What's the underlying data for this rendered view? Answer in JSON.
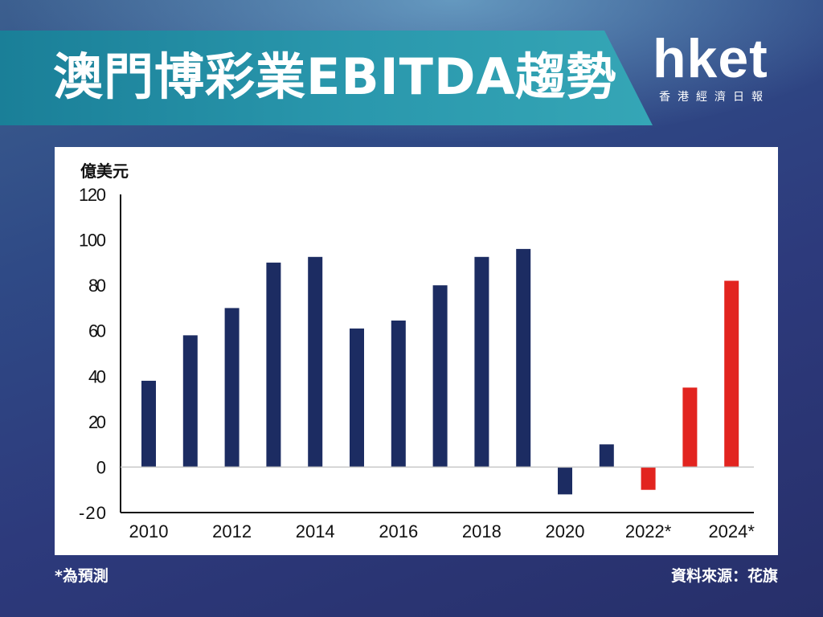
{
  "header": {
    "title": "澳門博彩業EBITDA趨勢",
    "logo_main": "hket",
    "logo_sub": "香港經濟日報"
  },
  "footer": {
    "note": "*為預測",
    "source": "資料來源：花旗"
  },
  "colors": {
    "actual": "#1c2c62",
    "forecast": "#e2241f"
  },
  "chart_data": {
    "type": "bar",
    "ylabel": "億美元",
    "ylim": [
      -20,
      120
    ],
    "yticks": [
      "120",
      "100",
      "80",
      "60",
      "40",
      "20",
      "0",
      "-20"
    ],
    "categories": [
      "2010",
      "2011",
      "2012",
      "2013",
      "2014",
      "2015",
      "2016",
      "2017",
      "2018",
      "2019",
      "2020",
      "2021",
      "2022*",
      "2023*",
      "2024*"
    ],
    "x_tick_labels": [
      "2010",
      "2012",
      "2014",
      "2016",
      "2018",
      "2020",
      "2022*",
      "2024*"
    ],
    "values": [
      38,
      58,
      70,
      90,
      92.5,
      61,
      64.5,
      80,
      92.5,
      96,
      -12,
      10,
      -10,
      35,
      82
    ],
    "forecast": [
      false,
      false,
      false,
      false,
      false,
      false,
      false,
      false,
      false,
      false,
      false,
      false,
      true,
      true,
      true
    ]
  }
}
